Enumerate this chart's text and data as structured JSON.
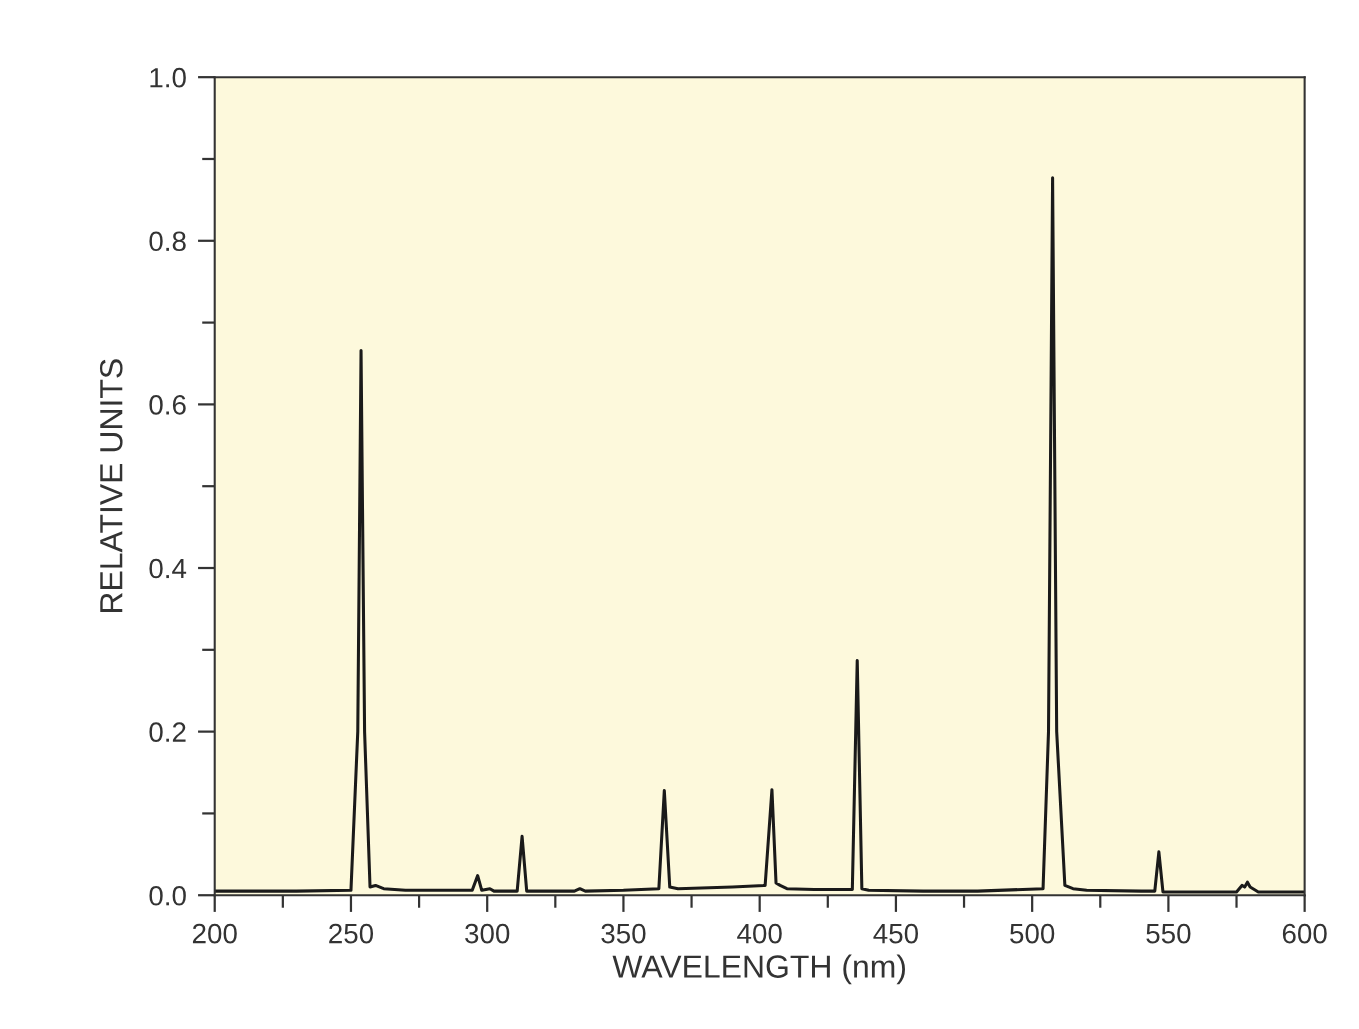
{
  "chart_data": {
    "type": "line",
    "xlabel": "WAVELENGTH (nm)",
    "ylabel": "RELATIVE UNITS",
    "x": [
      200,
      230,
      250,
      252.5,
      253.7,
      255,
      257,
      259,
      262,
      270,
      290,
      294.5,
      296.5,
      298,
      301,
      302.5,
      304,
      311,
      312.8,
      314.5,
      320,
      332,
      334,
      336,
      350,
      363,
      365,
      367,
      370,
      390,
      402,
      404.5,
      406,
      407.5,
      410,
      420,
      434,
      435.8,
      437.5,
      440,
      460,
      480,
      504,
      506,
      507.5,
      509,
      512,
      515,
      520,
      540,
      545,
      546.5,
      548,
      560,
      575,
      577,
      578,
      579,
      580,
      583,
      600
    ],
    "series": [
      {
        "color": "#1a1a1a",
        "values": [
          0.005,
          0.005,
          0.006,
          0.2,
          0.666,
          0.2,
          0.01,
          0.012,
          0.008,
          0.006,
          0.006,
          0.006,
          0.024,
          0.006,
          0.008,
          0.005,
          0.005,
          0.005,
          0.072,
          0.005,
          0.005,
          0.005,
          0.008,
          0.005,
          0.006,
          0.008,
          0.128,
          0.01,
          0.008,
          0.01,
          0.012,
          0.129,
          0.015,
          0.012,
          0.008,
          0.007,
          0.007,
          0.287,
          0.008,
          0.006,
          0.005,
          0.005,
          0.008,
          0.2,
          0.877,
          0.2,
          0.012,
          0.008,
          0.006,
          0.005,
          0.005,
          0.053,
          0.004,
          0.004,
          0.004,
          0.012,
          0.01,
          0.016,
          0.01,
          0.004,
          0.004
        ]
      }
    ],
    "xlim": [
      200,
      600
    ],
    "xticks": [
      200,
      {
        "value": 225,
        "label": null
      },
      250,
      {
        "value": 275,
        "label": null
      },
      300,
      {
        "value": 325,
        "label": null
      },
      350,
      {
        "value": 375,
        "label": null
      },
      400,
      {
        "value": 425,
        "label": null
      },
      450,
      {
        "value": 475,
        "label": null
      },
      500,
      {
        "value": 525,
        "label": null
      },
      550,
      {
        "value": 575,
        "label": null
      },
      600
    ],
    "ylim": [
      0,
      1
    ],
    "yticks": [
      {
        "value": 0,
        "label": "0.0"
      },
      {
        "value": 0.1,
        "label": null
      },
      {
        "value": 0.2,
        "label": "0.2"
      },
      {
        "value": 0.3,
        "label": null
      },
      {
        "value": 0.4,
        "label": "0.4"
      },
      {
        "value": 0.5,
        "label": null
      },
      {
        "value": 0.6,
        "label": "0.6"
      },
      {
        "value": 0.7,
        "label": null
      },
      {
        "value": 0.8,
        "label": "0.8"
      },
      {
        "value": 0.9,
        "label": null
      },
      {
        "value": 1,
        "label": "1.0"
      }
    ],
    "grid": false,
    "legend": false,
    "marker": "none",
    "line_style": "solid"
  }
}
